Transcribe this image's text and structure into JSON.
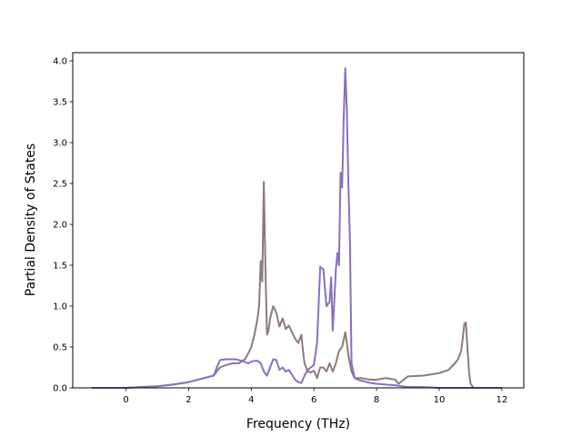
{
  "chart_data": {
    "type": "line",
    "title": "",
    "xlabel": "Frequency (THz)",
    "ylabel": "Partial Density of States",
    "xlim": [
      -1.7,
      12.7
    ],
    "ylim": [
      0,
      4.1
    ],
    "xticks": [
      0,
      2,
      4,
      6,
      8,
      10,
      12
    ],
    "yticks": [
      0.0,
      0.5,
      1.0,
      1.5,
      2.0,
      2.5,
      3.0,
      3.5,
      4.0
    ],
    "grid": false,
    "legend": "none",
    "series": [
      {
        "color": "#8c7b7b",
        "x": [
          -1.1,
          0.0,
          0.5,
          1.0,
          1.5,
          2.0,
          2.5,
          2.8,
          3.0,
          3.2,
          3.4,
          3.6,
          3.8,
          3.9,
          4.0,
          4.1,
          4.2,
          4.25,
          4.3,
          4.35,
          4.4,
          4.45,
          4.5,
          4.55,
          4.6,
          4.7,
          4.8,
          4.9,
          5.0,
          5.1,
          5.2,
          5.3,
          5.4,
          5.5,
          5.6,
          5.65,
          5.7,
          5.8,
          5.9,
          6.0,
          6.1,
          6.2,
          6.3,
          6.4,
          6.5,
          6.6,
          6.7,
          6.8,
          6.9,
          7.0,
          7.05,
          7.1,
          7.15,
          7.2,
          7.3,
          7.5,
          7.8,
          8.0,
          8.3,
          8.6,
          8.7,
          9.0,
          9.5,
          10.0,
          10.3,
          10.5,
          10.6,
          10.7,
          10.75,
          10.8,
          10.85,
          10.9,
          10.95,
          11.0,
          11.1,
          12.0
        ],
        "y": [
          0.0,
          0.0,
          0.01,
          0.02,
          0.04,
          0.07,
          0.12,
          0.15,
          0.25,
          0.28,
          0.3,
          0.3,
          0.35,
          0.42,
          0.5,
          0.65,
          0.85,
          1.0,
          1.55,
          1.3,
          2.52,
          1.5,
          0.65,
          0.7,
          0.85,
          1.0,
          0.92,
          0.75,
          0.85,
          0.72,
          0.76,
          0.68,
          0.6,
          0.55,
          0.65,
          0.45,
          0.3,
          0.2,
          0.19,
          0.21,
          0.12,
          0.25,
          0.25,
          0.2,
          0.3,
          0.2,
          0.3,
          0.45,
          0.5,
          0.68,
          0.55,
          0.4,
          0.3,
          0.2,
          0.12,
          0.12,
          0.1,
          0.1,
          0.12,
          0.1,
          0.05,
          0.14,
          0.15,
          0.18,
          0.22,
          0.3,
          0.35,
          0.45,
          0.6,
          0.78,
          0.8,
          0.5,
          0.2,
          0.05,
          0.0,
          0.0
        ]
      },
      {
        "color": "#8a6fbf",
        "x": [
          -1.1,
          0.0,
          0.5,
          1.0,
          1.5,
          2.0,
          2.5,
          2.8,
          2.9,
          3.0,
          3.2,
          3.5,
          3.7,
          3.9,
          4.0,
          4.1,
          4.2,
          4.3,
          4.4,
          4.5,
          4.6,
          4.7,
          4.8,
          4.9,
          5.0,
          5.1,
          5.2,
          5.3,
          5.4,
          5.5,
          5.6,
          5.7,
          5.8,
          5.9,
          6.0,
          6.1,
          6.2,
          6.3,
          6.4,
          6.5,
          6.55,
          6.6,
          6.65,
          6.7,
          6.75,
          6.8,
          6.85,
          6.9,
          6.95,
          7.0,
          7.05,
          7.1,
          7.15,
          7.2,
          7.3,
          7.4,
          7.6,
          7.8,
          8.0,
          8.3,
          8.6,
          9.0,
          9.5,
          10.0,
          10.5,
          10.7,
          10.8,
          10.9,
          11.0,
          11.5,
          12.0
        ],
        "y": [
          0.0,
          0.0,
          0.01,
          0.02,
          0.04,
          0.07,
          0.12,
          0.15,
          0.25,
          0.34,
          0.35,
          0.35,
          0.33,
          0.3,
          0.32,
          0.33,
          0.33,
          0.3,
          0.2,
          0.15,
          0.25,
          0.35,
          0.34,
          0.22,
          0.25,
          0.2,
          0.22,
          0.16,
          0.1,
          0.07,
          0.06,
          0.15,
          0.22,
          0.25,
          0.28,
          0.55,
          1.48,
          1.45,
          1.0,
          1.05,
          1.35,
          0.7,
          1.05,
          1.45,
          1.65,
          1.5,
          2.63,
          2.45,
          3.3,
          3.91,
          3.4,
          2.5,
          1.8,
          0.3,
          0.12,
          0.1,
          0.08,
          0.06,
          0.05,
          0.04,
          0.03,
          0.01,
          0.01,
          0.0,
          0.0,
          0.0,
          0.0,
          0.0,
          0.0,
          0.0,
          0.0
        ]
      }
    ]
  }
}
